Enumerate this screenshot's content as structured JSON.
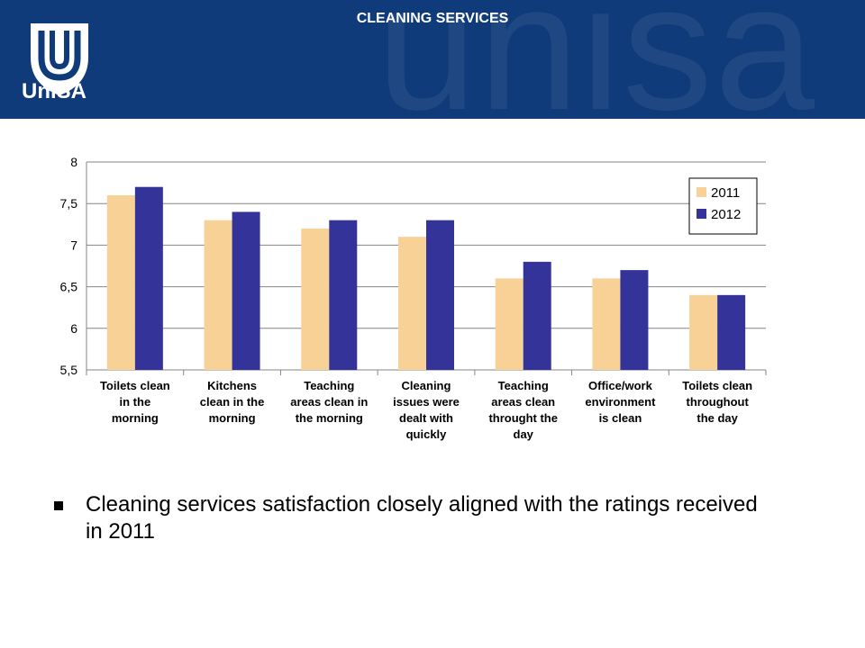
{
  "header": {
    "title": "CLEANING SERVICES",
    "logo_text": "UniSA",
    "watermark_text": "unisa",
    "background": "#0f3b7a"
  },
  "chart_data": {
    "type": "bar",
    "categories": [
      [
        "Toilets clean",
        "in the",
        "morning"
      ],
      [
        "Kitchens",
        "clean in the",
        "morning"
      ],
      [
        "Teaching",
        "areas clean in",
        "the morning"
      ],
      [
        "Cleaning",
        "issues were",
        "dealt with",
        "quickly"
      ],
      [
        "Teaching",
        "areas clean",
        "throught the",
        "day"
      ],
      [
        "Office/work",
        "environment",
        "is clean"
      ],
      [
        "Toilets clean",
        "throughout",
        "the day"
      ]
    ],
    "series": [
      {
        "name": "2011",
        "color": "#f8d196",
        "values": [
          7.6,
          7.3,
          7.2,
          7.1,
          6.6,
          6.6,
          6.4
        ]
      },
      {
        "name": "2012",
        "color": "#333399",
        "values": [
          7.7,
          7.4,
          7.3,
          7.3,
          6.8,
          6.7,
          6.4
        ]
      }
    ],
    "yticks": [
      "5,5",
      "6",
      "6,5",
      "7",
      "7,5",
      "8"
    ],
    "ylim": [
      5.5,
      8
    ],
    "grid": true,
    "legend": "top-right"
  },
  "bullet": {
    "text": "Cleaning services satisfaction closely aligned with the ratings received in 2011"
  }
}
